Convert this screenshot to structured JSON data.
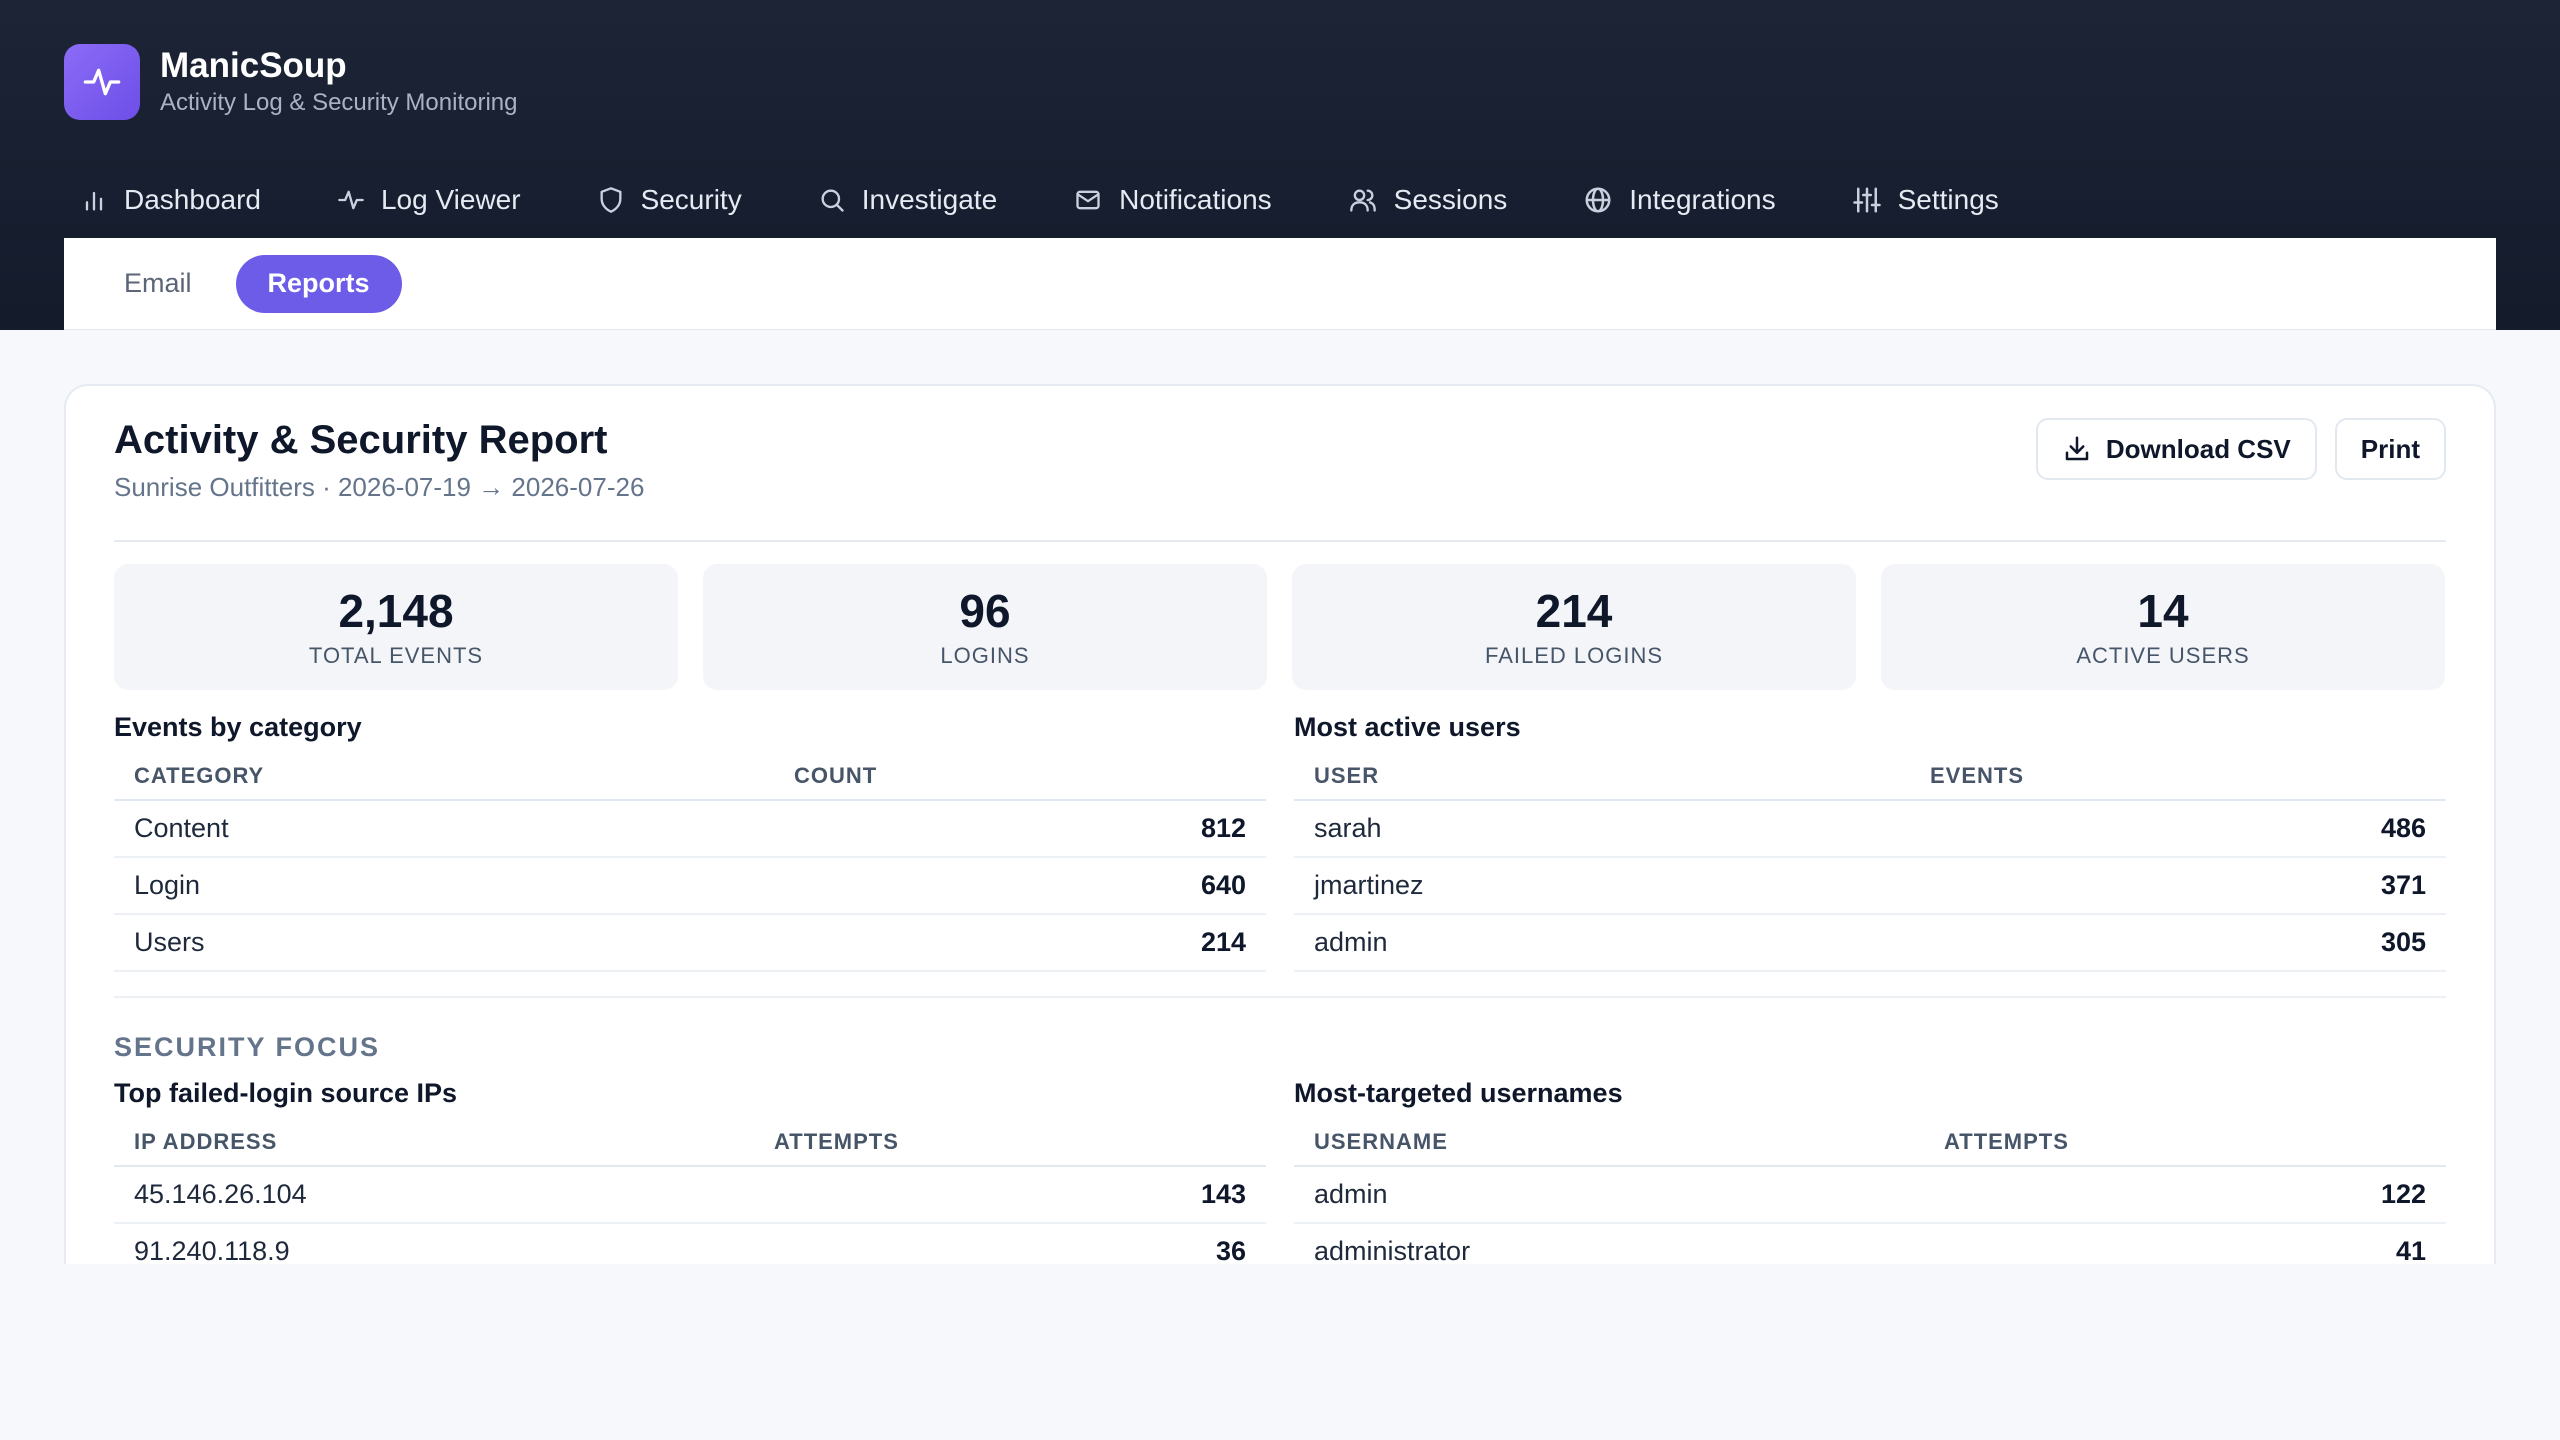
{
  "app": {
    "name": "ManicSoup",
    "subtitle": "Activity Log & Security Monitoring"
  },
  "nav": [
    {
      "label": "Dashboard",
      "icon": "bar-chart-icon"
    },
    {
      "label": "Log Viewer",
      "icon": "activity-icon"
    },
    {
      "label": "Security",
      "icon": "shield-icon"
    },
    {
      "label": "Investigate",
      "icon": "search-icon"
    },
    {
      "label": "Notifications",
      "icon": "mail-icon"
    },
    {
      "label": "Sessions",
      "icon": "users-icon"
    },
    {
      "label": "Integrations",
      "icon": "globe-icon"
    },
    {
      "label": "Settings",
      "icon": "sliders-icon"
    }
  ],
  "subtabs": [
    {
      "label": "Email",
      "active": false
    },
    {
      "label": "Reports",
      "active": true
    }
  ],
  "report": {
    "title": "Activity & Security Report",
    "subtitle": "Sunrise Outfitters · 2026-07-19 → 2026-07-26",
    "download_label": "Download CSV",
    "print_label": "Print"
  },
  "stats": [
    {
      "value": "2,148",
      "label": "TOTAL EVENTS"
    },
    {
      "value": "96",
      "label": "LOGINS"
    },
    {
      "value": "214",
      "label": "FAILED LOGINS"
    },
    {
      "value": "14",
      "label": "ACTIVE USERS"
    }
  ],
  "categories": {
    "title": "Events by category",
    "headers": [
      "CATEGORY",
      "COUNT"
    ],
    "rows": [
      {
        "name": "Content",
        "value": "812"
      },
      {
        "name": "Login",
        "value": "640"
      },
      {
        "name": "Users",
        "value": "214"
      }
    ]
  },
  "active_users": {
    "title": "Most active users",
    "headers": [
      "USER",
      "EVENTS"
    ],
    "rows": [
      {
        "name": "sarah",
        "value": "486"
      },
      {
        "name": "jmartinez",
        "value": "371"
      },
      {
        "name": "admin",
        "value": "305"
      }
    ]
  },
  "security_focus": {
    "label": "SECURITY FOCUS",
    "ips": {
      "title": "Top failed-login source IPs",
      "headers": [
        "IP ADDRESS",
        "ATTEMPTS"
      ],
      "rows": [
        {
          "name": "45.146.26.104",
          "value": "143"
        },
        {
          "name": "91.240.118.9",
          "value": "36"
        }
      ]
    },
    "usernames": {
      "title": "Most-targeted usernames",
      "headers": [
        "USERNAME",
        "ATTEMPTS"
      ],
      "rows": [
        {
          "name": "admin",
          "value": "122"
        },
        {
          "name": "administrator",
          "value": "41"
        }
      ]
    }
  }
}
